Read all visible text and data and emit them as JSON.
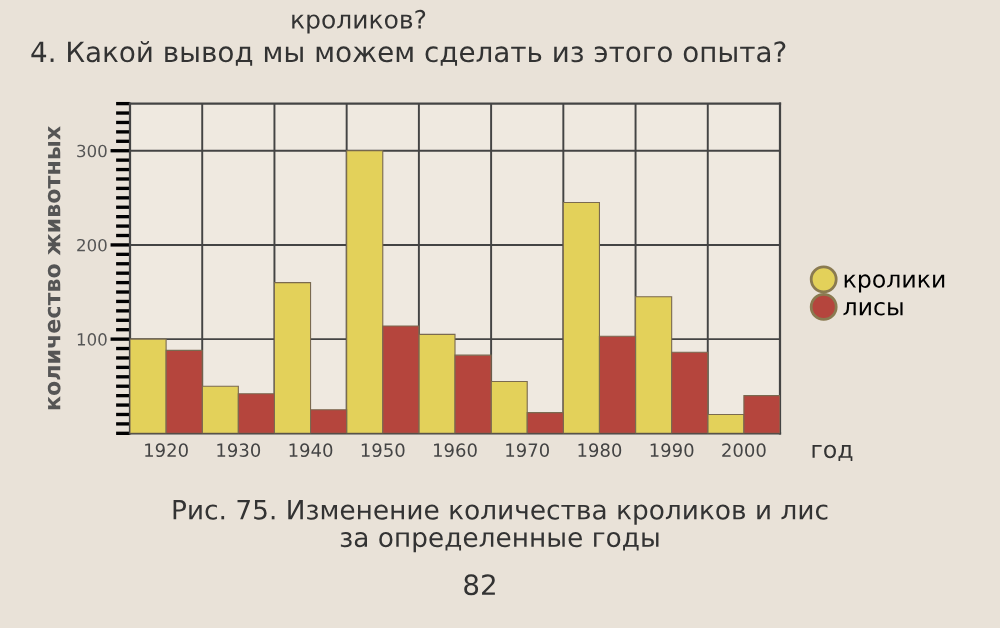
{
  "chart_data": {
    "type": "bar",
    "categories": [
      "1920",
      "1930",
      "1940",
      "1950",
      "1960",
      "1970",
      "1980",
      "1990",
      "2000"
    ],
    "series": [
      {
        "name": "кролики",
        "color": "#e3d15a",
        "values": [
          100,
          50,
          160,
          300,
          105,
          55,
          245,
          145,
          20
        ]
      },
      {
        "name": "лисы",
        "color": "#b5453d",
        "values": [
          88,
          42,
          25,
          114,
          83,
          22,
          103,
          86,
          40
        ]
      }
    ],
    "xlabel": "год",
    "ylabel": "количество животных",
    "ylim": [
      0,
      350
    ],
    "yticks": [
      100,
      200,
      300
    ],
    "grid": true,
    "legend": "right",
    "annotations": [
      "кроликов?",
      "4. Какой вывод мы можем сделать из этого опыта?",
      "Рис. 75. Изменение количества кроликов и лис\nза определенные годы",
      "82"
    ]
  }
}
